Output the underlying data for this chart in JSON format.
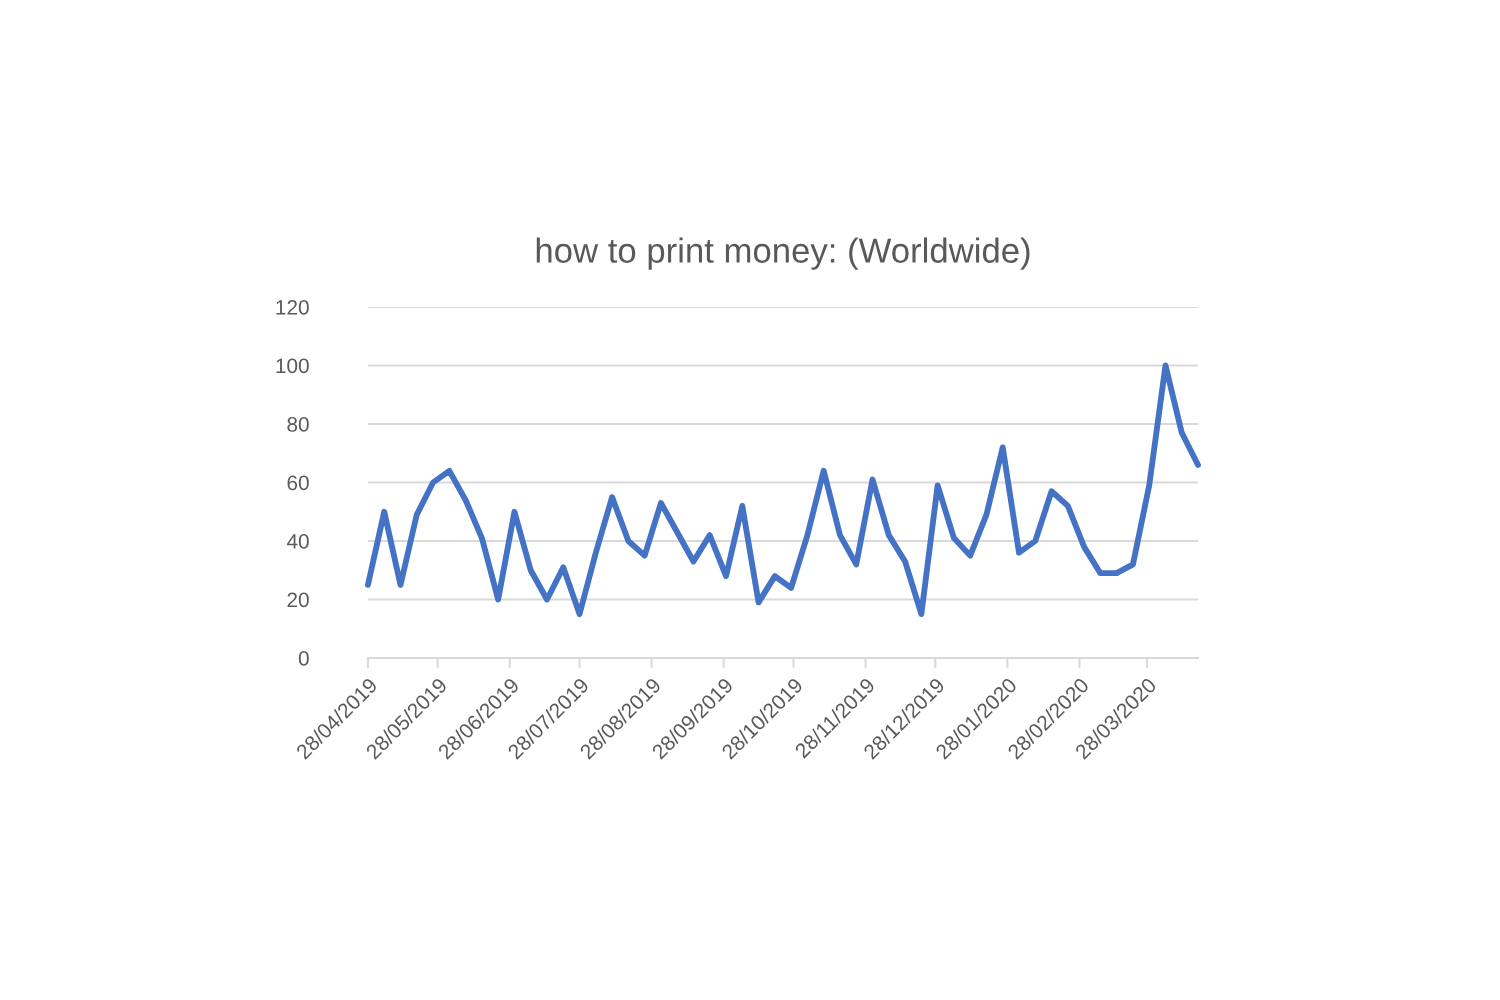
{
  "chart_data": {
    "type": "line",
    "title": "how to print money: (Worldwide)",
    "x": [
      "2019-04-28",
      "2019-05-05",
      "2019-05-12",
      "2019-05-19",
      "2019-05-26",
      "2019-06-02",
      "2019-06-09",
      "2019-06-16",
      "2019-06-23",
      "2019-06-30",
      "2019-07-07",
      "2019-07-14",
      "2019-07-21",
      "2019-07-28",
      "2019-08-04",
      "2019-08-11",
      "2019-08-18",
      "2019-08-25",
      "2019-09-01",
      "2019-09-08",
      "2019-09-15",
      "2019-09-22",
      "2019-09-29",
      "2019-10-06",
      "2019-10-13",
      "2019-10-20",
      "2019-10-27",
      "2019-11-03",
      "2019-11-10",
      "2019-11-17",
      "2019-11-24",
      "2019-12-01",
      "2019-12-08",
      "2019-12-15",
      "2019-12-22",
      "2019-12-29",
      "2020-01-05",
      "2020-01-12",
      "2020-01-19",
      "2020-01-26",
      "2020-02-02",
      "2020-02-09",
      "2020-02-16",
      "2020-02-23",
      "2020-03-01",
      "2020-03-08",
      "2020-03-15",
      "2020-03-22",
      "2020-03-29",
      "2020-04-05",
      "2020-04-12",
      "2020-04-19"
    ],
    "series": [
      {
        "color": "#4472c4",
        "values": [
          25,
          50,
          25,
          49,
          60,
          64,
          54,
          41,
          20,
          50,
          30,
          20,
          31,
          15,
          36,
          55,
          40,
          35,
          53,
          43,
          33,
          42,
          28,
          52,
          19,
          28,
          24,
          42,
          64,
          42,
          32,
          61,
          42,
          33,
          15,
          59,
          41,
          35,
          49,
          72,
          36,
          40,
          57,
          52,
          38,
          29,
          29,
          32,
          59,
          100,
          77,
          66
        ]
      }
    ],
    "xlim": [
      "2019-04-28",
      "2020-04-19"
    ],
    "xticks": [
      {
        "value": "2019-04-28",
        "label": "28/04/2019"
      },
      {
        "value": "2019-05-28",
        "label": "28/05/2019"
      },
      {
        "value": "2019-06-28",
        "label": "28/06/2019"
      },
      {
        "value": "2019-07-28",
        "label": "28/07/2019"
      },
      {
        "value": "2019-08-28",
        "label": "28/08/2019"
      },
      {
        "value": "2019-09-28",
        "label": "28/09/2019"
      },
      {
        "value": "2019-10-28",
        "label": "28/10/2019"
      },
      {
        "value": "2019-11-28",
        "label": "28/11/2019"
      },
      {
        "value": "2019-12-28",
        "label": "28/12/2019"
      },
      {
        "value": "2020-01-28",
        "label": "28/01/2020"
      },
      {
        "value": "2020-02-28",
        "label": "28/02/2020"
      },
      {
        "value": "2020-03-28",
        "label": "28/03/2020"
      }
    ],
    "ylim": [
      0,
      120
    ],
    "yticks": [
      0,
      20,
      40,
      60,
      80,
      100,
      120
    ],
    "grid": "y",
    "line_style": "solid"
  }
}
